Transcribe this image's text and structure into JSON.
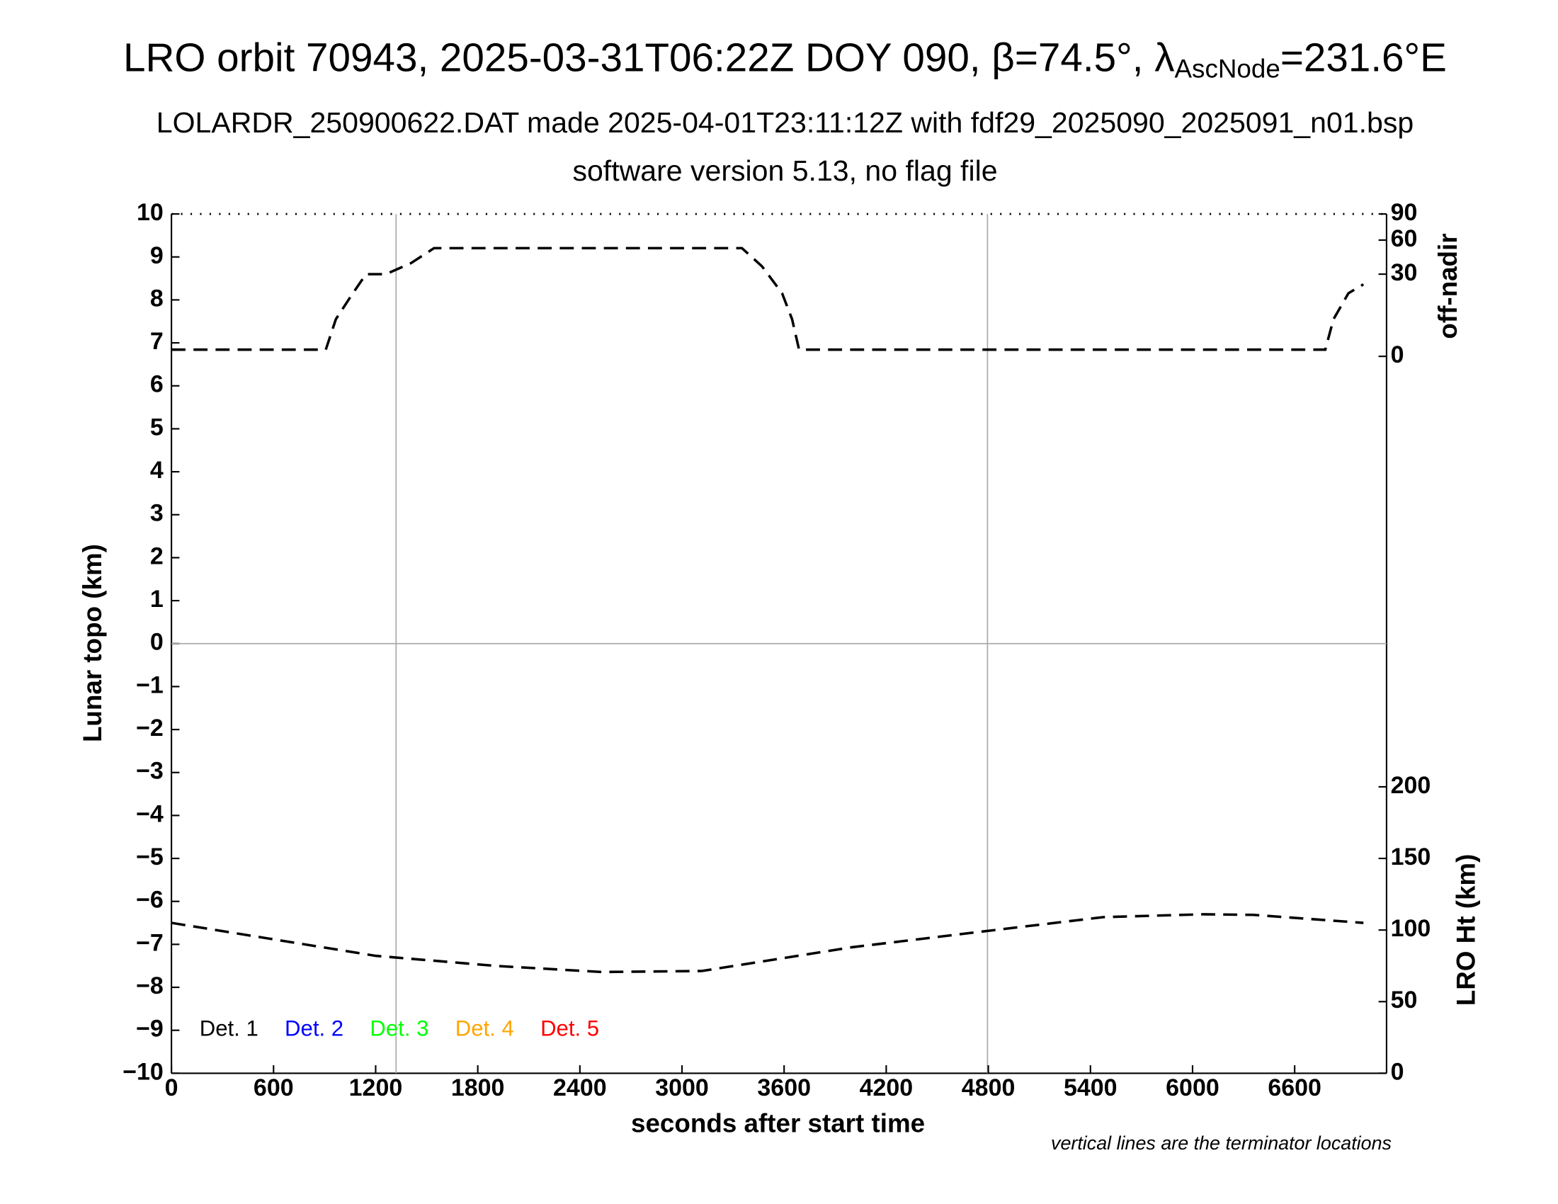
{
  "chart_data": {
    "type": "line",
    "title": [
      "LRO orbit 70943, 2025-03-31T06:22Z DOY 090, β=74.5°, λ",
      "AscNode",
      "=231.6°E"
    ],
    "subtitle": [
      "LOLARDR_250900622.DAT made 2025-04-01T23:11:12Z with fdf29_2025090_2025091_n01.bsp",
      "software version 5.13, no flag file"
    ],
    "xlabel": "seconds after start time",
    "ylabel": "Lunar topo (km)",
    "y2label": "LRO Ht (km)",
    "y3label": "off-nadir",
    "note": "vertical lines are the terminator locations",
    "xlim": [
      0,
      7140
    ],
    "xticks": [
      0,
      600,
      1200,
      1800,
      2400,
      3000,
      3600,
      4200,
      4800,
      5400,
      6000,
      6600
    ],
    "ylim": [
      -10,
      10
    ],
    "yticks": [
      {
        "value": -10,
        "label": "−10"
      },
      {
        "value": -9,
        "label": "−9"
      },
      {
        "value": -8,
        "label": "−8"
      },
      {
        "value": -7,
        "label": "−7"
      },
      {
        "value": -6,
        "label": "−6"
      },
      {
        "value": -5,
        "label": "−5"
      },
      {
        "value": -4,
        "label": "−4"
      },
      {
        "value": -3,
        "label": "−3"
      },
      {
        "value": -2,
        "label": "−2"
      },
      {
        "value": -1,
        "label": "−1"
      },
      0,
      1,
      2,
      3,
      4,
      5,
      6,
      7,
      8,
      9,
      10
    ],
    "y2lim": [
      0,
      600
    ],
    "y2ticks": [
      0,
      50,
      100,
      150,
      200
    ],
    "y3lim": [
      0,
      90
    ],
    "y3scale": "sqrt",
    "y3ticks": [
      0,
      30,
      60,
      90
    ],
    "terminators": [
      1320,
      4795
    ],
    "legend": [
      {
        "name": "Det. 1",
        "color": "#000000"
      },
      {
        "name": "Det. 2",
        "color": "#0000ff"
      },
      {
        "name": "Det. 3",
        "color": "#00ff00"
      },
      {
        "name": "Det. 4",
        "color": "#ffa500"
      },
      {
        "name": "Det. 5",
        "color": "#ff0000"
      }
    ],
    "series": [
      {
        "name": "off-nadir",
        "axis": "y3",
        "color": "#000000",
        "x": [
          0,
          907,
          966,
          1054,
          1143,
          1260,
          1408,
          1543,
          3352,
          3470,
          3588,
          3647,
          3688,
          3735,
          6780,
          6828,
          6916,
          7004
        ],
        "values": [
          0.2,
          0.2,
          6.1,
          16,
          30,
          30,
          38.6,
          52,
          52,
          36,
          17.7,
          6.1,
          0.2,
          0.2,
          0.2,
          6.1,
          17.7,
          23
        ]
      },
      {
        "name": "LRO Ht",
        "axis": "y2",
        "color": "#000000",
        "x": [
          0,
          1200,
          1900,
          2528,
          3116,
          4000,
          4796,
          5474,
          6063,
          6357,
          7004
        ],
        "values": [
          105,
          82,
          75,
          70.7,
          71.4,
          88,
          99.4,
          109,
          111,
          110.6,
          105
        ]
      }
    ]
  }
}
